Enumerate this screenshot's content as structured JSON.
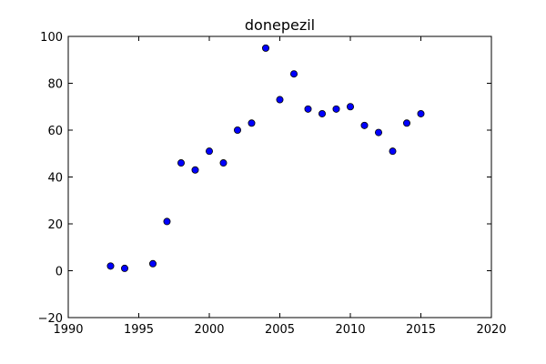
{
  "chart_data": {
    "type": "scatter",
    "title": "donepezil",
    "xlabel": "",
    "ylabel": "",
    "xlim": [
      1990,
      2020
    ],
    "ylim": [
      -20,
      100
    ],
    "x_ticks": [
      "1990",
      "1995",
      "2000",
      "2005",
      "2010",
      "2015",
      "2020"
    ],
    "y_ticks": [
      "−20",
      "0",
      "20",
      "40",
      "60",
      "80",
      "100"
    ],
    "grid": false,
    "marker_color": "#0000ff",
    "points": [
      {
        "x": 1993,
        "y": 2
      },
      {
        "x": 1994,
        "y": 1
      },
      {
        "x": 1996,
        "y": 3
      },
      {
        "x": 1997,
        "y": 21
      },
      {
        "x": 1998,
        "y": 46
      },
      {
        "x": 1999,
        "y": 43
      },
      {
        "x": 2000,
        "y": 51
      },
      {
        "x": 2001,
        "y": 46
      },
      {
        "x": 2002,
        "y": 60
      },
      {
        "x": 2003,
        "y": 63
      },
      {
        "x": 2004,
        "y": 95
      },
      {
        "x": 2005,
        "y": 73
      },
      {
        "x": 2006,
        "y": 84
      },
      {
        "x": 2007,
        "y": 69
      },
      {
        "x": 2008,
        "y": 67
      },
      {
        "x": 2009,
        "y": 69
      },
      {
        "x": 2010,
        "y": 70
      },
      {
        "x": 2011,
        "y": 62
      },
      {
        "x": 2012,
        "y": 59
      },
      {
        "x": 2013,
        "y": 51
      },
      {
        "x": 2014,
        "y": 63
      },
      {
        "x": 2015,
        "y": 67
      }
    ]
  }
}
